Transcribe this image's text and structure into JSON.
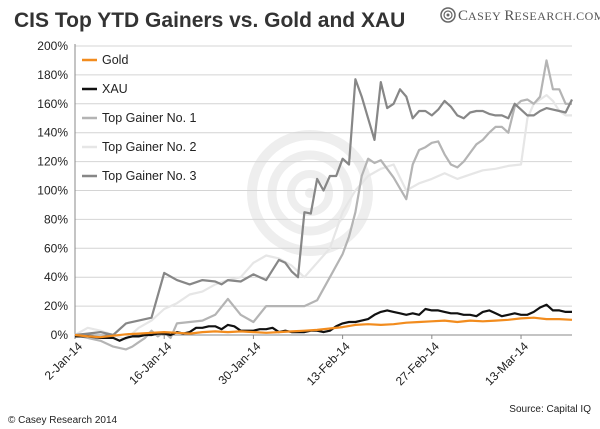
{
  "chart_data": {
    "type": "line",
    "title": "CIS Top YTD Gainers vs. Gold and XAU",
    "ylim": [
      0,
      200
    ],
    "y_ticks": [
      "0%",
      "20%",
      "40%",
      "60%",
      "80%",
      "100%",
      "120%",
      "140%",
      "160%",
      "180%",
      "200%"
    ],
    "x_tick_labels": [
      "2-Jan-14",
      "16-Jan-14",
      "30-Jan-14",
      "13-Feb-14",
      "27-Feb-14",
      "13-Mar-14"
    ],
    "x_ticks": [
      0,
      14,
      28,
      42,
      56,
      70
    ],
    "xlim": [
      0,
      78
    ],
    "legend_position": "upper-left",
    "series": [
      {
        "name": "Gold",
        "color": "#f28c1e",
        "x": [
          0,
          2,
          4,
          6,
          8,
          10,
          12,
          14,
          16,
          18,
          20,
          22,
          24,
          26,
          28,
          30,
          32,
          34,
          36,
          38,
          40,
          42,
          44,
          46,
          48,
          50,
          52,
          54,
          56,
          58,
          60,
          62,
          64,
          66,
          68,
          70,
          72,
          74,
          76,
          78
        ],
        "y": [
          0,
          -1,
          -1.5,
          -0.5,
          0.5,
          1,
          1.5,
          2,
          1.5,
          1,
          2,
          2.5,
          2,
          2.5,
          2,
          1.5,
          2,
          2.5,
          3,
          3.5,
          4.5,
          5.5,
          7,
          7.5,
          7,
          7.5,
          8.5,
          9,
          9.5,
          10,
          9,
          10,
          9.5,
          10,
          10.5,
          11.5,
          12,
          11,
          11,
          10.5
        ]
      },
      {
        "name": "XAU",
        "color": "#111111",
        "x": [
          0,
          2,
          4,
          6,
          7,
          8,
          9,
          10,
          11,
          12,
          13,
          14,
          15,
          16,
          17,
          18,
          19,
          20,
          21,
          22,
          23,
          24,
          25,
          26,
          27,
          28,
          29,
          30,
          31,
          32,
          33,
          34,
          35,
          36,
          37,
          38,
          39,
          40,
          41,
          42,
          43,
          44,
          45,
          46,
          47,
          48,
          49,
          50,
          51,
          52,
          53,
          54,
          55,
          56,
          57,
          58,
          59,
          60,
          61,
          62,
          63,
          64,
          65,
          66,
          67,
          68,
          69,
          70,
          71,
          72,
          73,
          74,
          75,
          76,
          77,
          78
        ],
        "y": [
          -1,
          -1,
          -2,
          -2,
          -4,
          -2,
          -1,
          -1,
          0,
          0,
          1,
          1,
          0,
          2,
          1,
          2,
          5,
          5,
          6,
          6,
          4,
          7,
          6,
          3,
          3,
          3,
          4,
          4,
          5,
          2,
          3,
          2,
          2,
          2,
          3,
          3,
          2,
          3,
          6,
          8,
          9,
          9,
          10,
          11,
          14,
          16,
          17,
          16,
          15,
          14,
          15,
          14,
          18,
          17,
          17,
          16,
          15,
          15,
          14,
          14,
          13,
          16,
          17,
          15,
          13,
          14,
          15,
          14,
          14,
          16,
          19,
          21,
          17,
          17,
          16,
          16
        ]
      },
      {
        "name": "Top Gainer No. 1",
        "color": "#b4b4b4",
        "x": [
          0,
          2,
          4,
          6,
          8,
          9,
          10,
          11,
          12,
          13,
          14,
          15,
          16,
          18,
          20,
          22,
          24,
          26,
          28,
          30,
          32,
          34,
          36,
          38,
          40,
          42,
          43,
          44,
          45,
          46,
          47,
          48,
          50,
          52,
          53,
          54,
          55,
          56,
          57,
          58,
          59,
          60,
          61,
          62,
          63,
          64,
          65,
          66,
          67,
          68,
          69,
          70,
          71,
          72,
          73,
          74,
          75,
          76,
          77,
          78
        ],
        "y": [
          0,
          -2,
          -4,
          -8,
          -10,
          -8,
          -5,
          -2,
          3,
          -1,
          2,
          -2,
          8,
          9,
          10,
          14,
          25,
          14,
          9,
          20,
          20,
          20,
          20,
          24,
          40,
          56,
          68,
          85,
          110,
          122,
          119,
          121,
          109,
          94,
          118,
          128,
          130,
          133,
          134,
          125,
          118,
          116,
          120,
          126,
          132,
          135,
          140,
          144,
          144,
          140,
          158,
          162,
          163,
          160,
          165,
          190,
          170,
          170,
          160,
          160
        ]
      },
      {
        "name": "Top Gainer No. 2",
        "color": "#e6e6e6",
        "x": [
          0,
          2,
          4,
          6,
          8,
          10,
          12,
          14,
          16,
          18,
          20,
          22,
          24,
          26,
          28,
          30,
          32,
          34,
          36,
          38,
          40,
          42,
          44,
          46,
          48,
          50,
          52,
          54,
          56,
          58,
          60,
          62,
          64,
          66,
          68,
          70,
          71,
          72,
          73,
          74,
          75,
          76,
          77,
          78
        ],
        "y": [
          0,
          5,
          3,
          0,
          -3,
          5,
          10,
          18,
          22,
          28,
          30,
          35,
          38,
          40,
          50,
          55,
          53,
          48,
          40,
          50,
          60,
          85,
          100,
          110,
          115,
          118,
          100,
          105,
          108,
          112,
          108,
          111,
          114,
          115,
          117,
          118,
          150,
          160,
          163,
          166,
          162,
          155,
          152,
          152
        ]
      },
      {
        "name": "Top Gainer No. 3",
        "color": "#878787",
        "x": [
          0,
          2,
          4,
          6,
          8,
          10,
          12,
          14,
          16,
          18,
          20,
          22,
          23,
          24,
          26,
          28,
          29,
          30,
          32,
          33,
          34,
          35,
          36,
          37,
          38,
          39,
          40,
          41,
          42,
          43,
          44,
          45,
          46,
          47,
          48,
          49,
          50,
          51,
          52,
          53,
          54,
          55,
          56,
          57,
          58,
          59,
          60,
          61,
          62,
          63,
          64,
          65,
          66,
          67,
          68,
          69,
          70,
          71,
          72,
          73,
          74,
          75,
          76,
          77,
          78
        ],
        "y": [
          0,
          1,
          2,
          0,
          8,
          10,
          12,
          43,
          38,
          35,
          38,
          37,
          35,
          38,
          37,
          42,
          40,
          38,
          52,
          50,
          44,
          40,
          85,
          84,
          108,
          100,
          110,
          110,
          122,
          118,
          177,
          165,
          150,
          135,
          175,
          157,
          160,
          170,
          165,
          150,
          155,
          155,
          152,
          156,
          162,
          158,
          152,
          150,
          154,
          155,
          155,
          153,
          152,
          152,
          150,
          160,
          156,
          152,
          152,
          155,
          157,
          156,
          155,
          154,
          163
        ]
      }
    ]
  },
  "footer": {
    "copyright": "© Casey Research 2014",
    "source": "Source: Capital IQ"
  },
  "logo": {
    "text_big": "C",
    "text_rest": "ASEY ",
    "text_big2": "R",
    "text_rest2": "ESEARCH.COM"
  }
}
